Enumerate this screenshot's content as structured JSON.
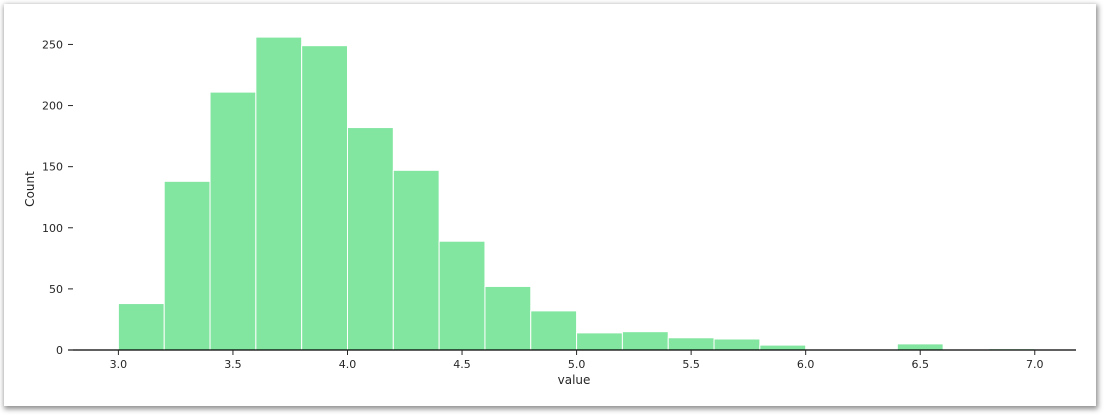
{
  "chart_data": {
    "type": "bar",
    "subtype": "histogram",
    "title": "",
    "xlabel": "value",
    "ylabel": "Count",
    "xlim": [
      2.78,
      7.18
    ],
    "ylim": [
      0,
      270
    ],
    "xticks": [
      3.0,
      3.5,
      4.0,
      4.5,
      5.0,
      5.5,
      6.0,
      6.5,
      7.0
    ],
    "xtick_labels": [
      "3.0",
      "3.5",
      "4.0",
      "4.5",
      "5.0",
      "5.5",
      "6.0",
      "6.5",
      "7.0"
    ],
    "yticks": [
      0,
      50,
      100,
      150,
      200,
      250
    ],
    "ytick_labels": [
      "0",
      "50",
      "100",
      "150",
      "200",
      "250"
    ],
    "grid": false,
    "legend": "none",
    "bar_color": "#82e5a0",
    "edge_color": "#ffffff",
    "bins": [
      {
        "x0": 3.0,
        "x1": 3.2,
        "count": 38
      },
      {
        "x0": 3.2,
        "x1": 3.4,
        "count": 138
      },
      {
        "x0": 3.4,
        "x1": 3.6,
        "count": 211
      },
      {
        "x0": 3.6,
        "x1": 3.8,
        "count": 256
      },
      {
        "x0": 3.8,
        "x1": 4.0,
        "count": 249
      },
      {
        "x0": 4.0,
        "x1": 4.2,
        "count": 182
      },
      {
        "x0": 4.2,
        "x1": 4.4,
        "count": 147
      },
      {
        "x0": 4.4,
        "x1": 4.6,
        "count": 89
      },
      {
        "x0": 4.6,
        "x1": 4.8,
        "count": 52
      },
      {
        "x0": 4.8,
        "x1": 5.0,
        "count": 32
      },
      {
        "x0": 5.0,
        "x1": 5.2,
        "count": 14
      },
      {
        "x0": 5.2,
        "x1": 5.4,
        "count": 15
      },
      {
        "x0": 5.4,
        "x1": 5.6,
        "count": 10
      },
      {
        "x0": 5.6,
        "x1": 5.8,
        "count": 9
      },
      {
        "x0": 5.8,
        "x1": 6.0,
        "count": 4
      },
      {
        "x0": 6.0,
        "x1": 6.2,
        "count": 0
      },
      {
        "x0": 6.2,
        "x1": 6.4,
        "count": 0
      },
      {
        "x0": 6.4,
        "x1": 6.6,
        "count": 5
      },
      {
        "x0": 6.6,
        "x1": 6.8,
        "count": 0
      },
      {
        "x0": 6.8,
        "x1": 7.0,
        "count": 1
      }
    ]
  }
}
